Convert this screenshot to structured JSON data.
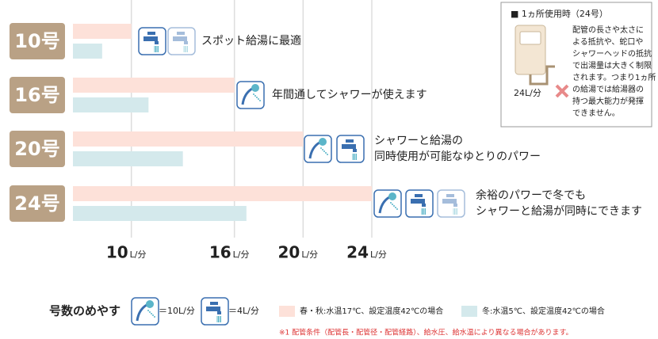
{
  "chart_data": {
    "type": "bar",
    "orientation": "horizontal",
    "categories": [
      "10号",
      "16号",
      "20号",
      "24号"
    ],
    "series": [
      {
        "name": "春・秋:水温17℃、設定温度42℃の場合",
        "color": "#fde1d9",
        "values": [
          10,
          16,
          20,
          24
        ]
      },
      {
        "name": "冬:水温5℃、設定温度42℃の場合",
        "color": "#d4e9ec",
        "values": [
          8.3,
          11,
          13,
          16.7
        ]
      }
    ],
    "xlim": [
      6.6,
      24
    ],
    "xticks": [
      10,
      16,
      20,
      24
    ],
    "x_unit": "L/分",
    "grid": true,
    "annotations": [
      [
        "スポット給湯に最適"
      ],
      [
        "年間通してシャワーが使えます"
      ],
      [
        "シャワーと給湯の",
        "同時使用が可能なゆとりのパワー"
      ],
      [
        "余裕のパワーで冬でも",
        "シャワーと給湯が同時にできます"
      ]
    ],
    "legend_title": "号数のめやす",
    "icon_legend": [
      "＝10L/分",
      "＝4L/分"
    ],
    "inset": {
      "title": "■ 1ヵ所使用時（24号）",
      "label": "24L/分",
      "text": [
        "配管の長さや太さに",
        "よる抵抗や、蛇口や",
        "シャワーヘッドの抵抗",
        "で出湯量は大きく制限",
        "されます。つまり1ヵ所",
        "の給湯では給湯器の",
        "持つ最大能力が発揮",
        "できません。"
      ]
    },
    "footnote": "※1 配管条件（配管長・配管径・配管経路）、給水圧、給水温により異なる場合があります。"
  }
}
